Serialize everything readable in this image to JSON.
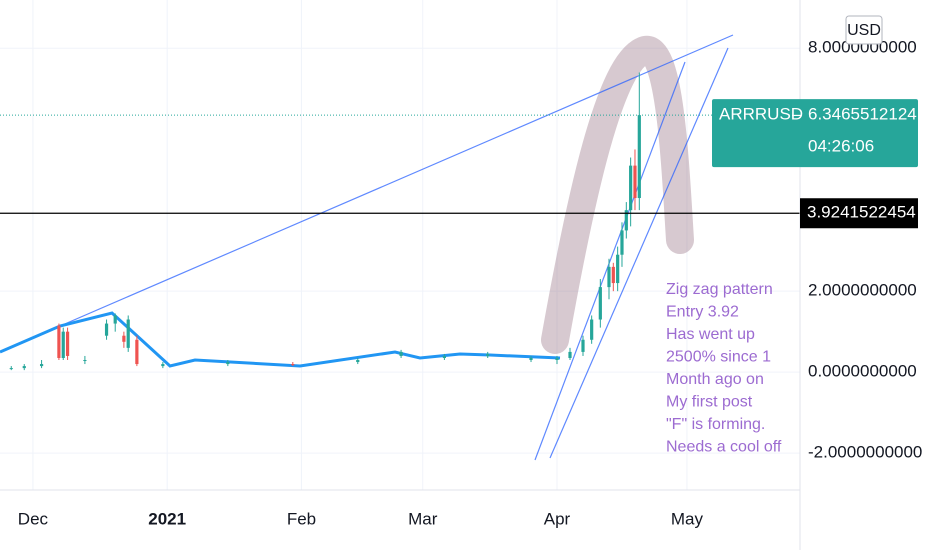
{
  "chart_data": {
    "type": "candlestick",
    "symbol": "ARRRUSD",
    "currency": "USD",
    "last_price": {
      "value": 6.3465512124,
      "label": "6.3465512124"
    },
    "countdown": "04:26:06",
    "horizontal_line": {
      "value": 3.9241522454,
      "label": "3.9241522454"
    },
    "annotation": [
      "Zig zag pattern",
      "Entry 3.92",
      "Has went up",
      "2500% since 1",
      "Month ago on",
      "My first post",
      "\"F\" is forming.",
      "Needs a cool off"
    ],
    "xlim": [
      -7.6,
      177.1
    ],
    "xticks": [
      {
        "value": 0,
        "label": "Dec"
      },
      {
        "value": 31,
        "label": "2021"
      },
      {
        "value": 62,
        "label": "Feb"
      },
      {
        "value": 90,
        "label": "Mar"
      },
      {
        "value": 121,
        "label": "Apr"
      },
      {
        "value": 151,
        "label": "May"
      }
    ],
    "ylim": [
      -2.91,
      9.19
    ],
    "yticks": [
      {
        "value": 8,
        "label": "8.0000000000"
      },
      {
        "value": 2,
        "label": "2.0000000000"
      },
      {
        "value": 0,
        "label": "0.0000000000"
      },
      {
        "value": -2,
        "label": "-2.0000000000"
      }
    ],
    "grid": true,
    "up_color": "#26a69a",
    "down_color": "#ef5350",
    "candles": [
      {
        "x": -5,
        "open": 0.1,
        "high": 0.15,
        "low": 0.05,
        "close": 0.1
      },
      {
        "x": -2,
        "open": 0.1,
        "high": 0.2,
        "low": 0.05,
        "close": 0.15
      },
      {
        "x": 2,
        "open": 0.15,
        "high": 0.3,
        "low": 0.1,
        "close": 0.2
      },
      {
        "x": 6,
        "open": 1.15,
        "high": 1.2,
        "low": 0.3,
        "close": 0.35
      },
      {
        "x": 7,
        "open": 0.35,
        "high": 1.1,
        "low": 0.3,
        "close": 1.0
      },
      {
        "x": 8,
        "open": 1.0,
        "high": 1.1,
        "low": 0.3,
        "close": 0.4
      },
      {
        "x": 12,
        "open": 0.3,
        "high": 0.4,
        "low": 0.2,
        "close": 0.3
      },
      {
        "x": 17,
        "open": 0.9,
        "high": 1.3,
        "low": 0.8,
        "close": 1.2
      },
      {
        "x": 19,
        "open": 1.2,
        "high": 1.45,
        "low": 1.0,
        "close": 1.4
      },
      {
        "x": 21,
        "open": 0.9,
        "high": 1.0,
        "low": 0.6,
        "close": 0.75
      },
      {
        "x": 22,
        "open": 0.6,
        "high": 1.4,
        "low": 0.5,
        "close": 1.3
      },
      {
        "x": 24,
        "open": 0.8,
        "high": 0.9,
        "low": 0.15,
        "close": 0.2
      },
      {
        "x": 30,
        "open": 0.15,
        "high": 0.25,
        "low": 0.1,
        "close": 0.2
      },
      {
        "x": 45,
        "open": 0.2,
        "high": 0.3,
        "low": 0.15,
        "close": 0.25
      },
      {
        "x": 60,
        "open": 0.2,
        "high": 0.25,
        "low": 0.15,
        "close": 0.18
      },
      {
        "x": 75,
        "open": 0.25,
        "high": 0.35,
        "low": 0.2,
        "close": 0.3
      },
      {
        "x": 85,
        "open": 0.4,
        "high": 0.55,
        "low": 0.35,
        "close": 0.5
      },
      {
        "x": 95,
        "open": 0.35,
        "high": 0.45,
        "low": 0.3,
        "close": 0.4
      },
      {
        "x": 105,
        "open": 0.4,
        "high": 0.5,
        "low": 0.35,
        "close": 0.45
      },
      {
        "x": 115,
        "open": 0.3,
        "high": 0.4,
        "low": 0.25,
        "close": 0.35
      },
      {
        "x": 121,
        "open": 0.3,
        "high": 0.4,
        "low": 0.2,
        "close": 0.35
      },
      {
        "x": 124,
        "open": 0.35,
        "high": 0.6,
        "low": 0.3,
        "close": 0.5
      },
      {
        "x": 127,
        "open": 0.5,
        "high": 0.9,
        "low": 0.4,
        "close": 0.8
      },
      {
        "x": 129,
        "open": 0.8,
        "high": 1.4,
        "low": 0.7,
        "close": 1.3
      },
      {
        "x": 131,
        "open": 1.3,
        "high": 2.3,
        "low": 1.1,
        "close": 2.1
      },
      {
        "x": 133,
        "open": 2.1,
        "high": 2.8,
        "low": 1.8,
        "close": 2.6
      },
      {
        "x": 134,
        "open": 2.6,
        "high": 2.7,
        "low": 2.0,
        "close": 2.2
      },
      {
        "x": 135,
        "open": 2.2,
        "high": 3.1,
        "low": 2.0,
        "close": 2.9
      },
      {
        "x": 136,
        "open": 2.9,
        "high": 3.7,
        "low": 2.6,
        "close": 3.5
      },
      {
        "x": 137,
        "open": 3.5,
        "high": 4.2,
        "low": 3.3,
        "close": 4.0
      },
      {
        "x": 138,
        "open": 4.0,
        "high": 5.3,
        "low": 3.6,
        "close": 5.1
      },
      {
        "x": 139,
        "open": 5.1,
        "high": 5.5,
        "low": 4.0,
        "close": 4.3
      },
      {
        "x": 140,
        "open": 4.3,
        "high": 7.4,
        "low": 4.0,
        "close": 6.3465512124
      }
    ]
  }
}
